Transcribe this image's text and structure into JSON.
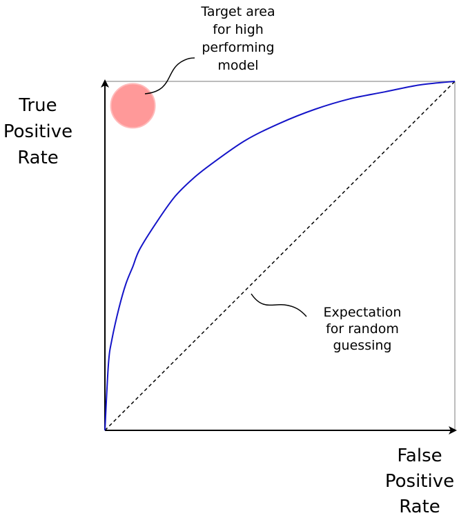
{
  "chart_data": {
    "type": "line",
    "xlabel_lines": [
      "False",
      "Positive",
      "Rate"
    ],
    "ylabel_lines": [
      "True",
      "Positive",
      "Rate"
    ],
    "xlim": [
      0,
      1
    ],
    "ylim": [
      0,
      1
    ],
    "grid": false,
    "series": [
      {
        "style": "solid",
        "color": "#1414c8",
        "x": [
          0,
          0.01,
          0.02,
          0.04,
          0.06,
          0.08,
          0.1,
          0.15,
          0.2,
          0.25,
          0.3,
          0.4,
          0.5,
          0.6,
          0.7,
          0.8,
          0.9,
          1.0
        ],
        "y": [
          0,
          0.19,
          0.26,
          0.35,
          0.42,
          0.47,
          0.52,
          0.6,
          0.67,
          0.72,
          0.76,
          0.83,
          0.88,
          0.92,
          0.95,
          0.97,
          0.99,
          1.0
        ]
      },
      {
        "style": "dashed",
        "color": "#000000",
        "x": [
          0,
          1
        ],
        "y": [
          0,
          1
        ]
      }
    ],
    "target_marker": {
      "x": 0.08,
      "y": 0.93,
      "color": "#ff9999"
    }
  },
  "annotations": {
    "target_lines": [
      "Target area",
      "for high",
      "performing",
      "model"
    ],
    "random_lines": [
      "Expectation",
      "for random",
      "guessing"
    ]
  }
}
